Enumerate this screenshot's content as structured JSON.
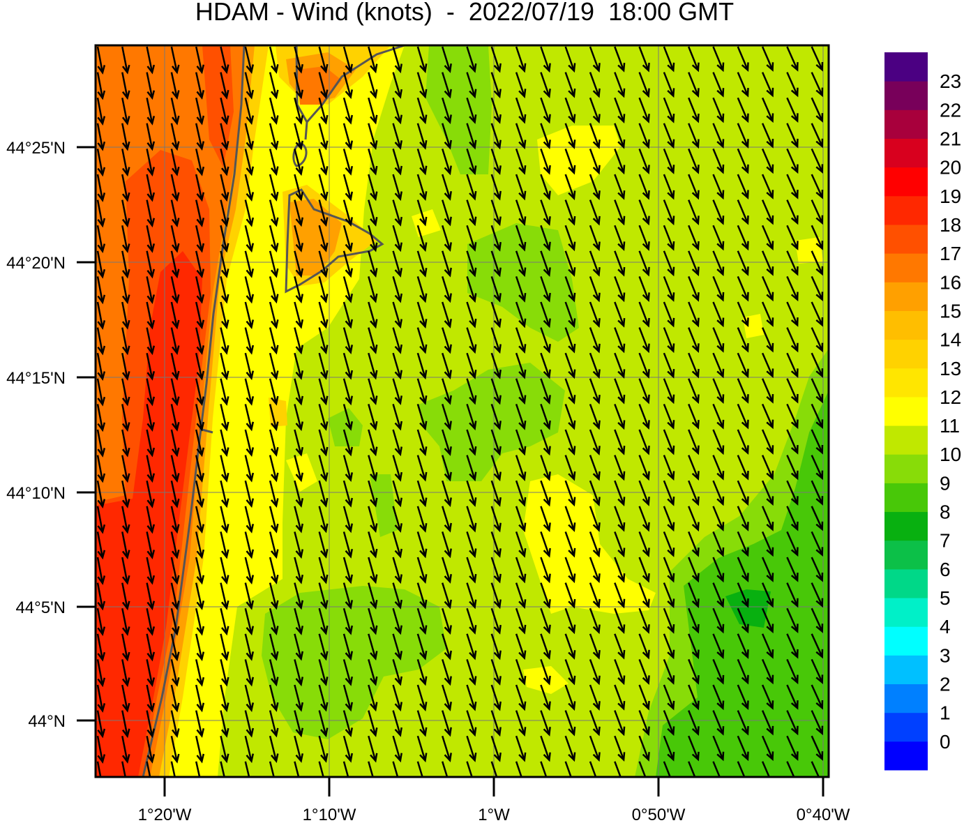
{
  "title": "HDAM - Wind (knots)  -  2022/07/19  18:00 GMT",
  "map": {
    "lat_labels": [
      "44°25'N",
      "44°20'N",
      "44°15'N",
      "44°10'N",
      "44°5'N",
      "44°N"
    ],
    "lon_labels": [
      "1°20'W",
      "1°10'W",
      "1°W",
      "0°50'W",
      "0°40'W"
    ],
    "wind_vector_icon": "arrow-south-southeast-icon",
    "coastline_color": "#555555"
  },
  "colorbar": {
    "labels": [
      "0",
      "1",
      "2",
      "3",
      "4",
      "5",
      "6",
      "7",
      "8",
      "9",
      "10",
      "11",
      "12",
      "13",
      "14",
      "15",
      "16",
      "17",
      "18",
      "19",
      "20",
      "21",
      "22",
      "23"
    ],
    "colors": [
      "#0000ff",
      "#0040ff",
      "#0080ff",
      "#00c0ff",
      "#00ffff",
      "#00f0c8",
      "#00d888",
      "#0cc048",
      "#08b010",
      "#48c808",
      "#88dc08",
      "#c0e800",
      "#ffff00",
      "#ffe600",
      "#ffd200",
      "#ffbe00",
      "#ffa000",
      "#ff7800",
      "#ff5000",
      "#ff2800",
      "#ff0000",
      "#d8001e",
      "#a8003c",
      "#78005a",
      "#4b0082"
    ]
  }
}
